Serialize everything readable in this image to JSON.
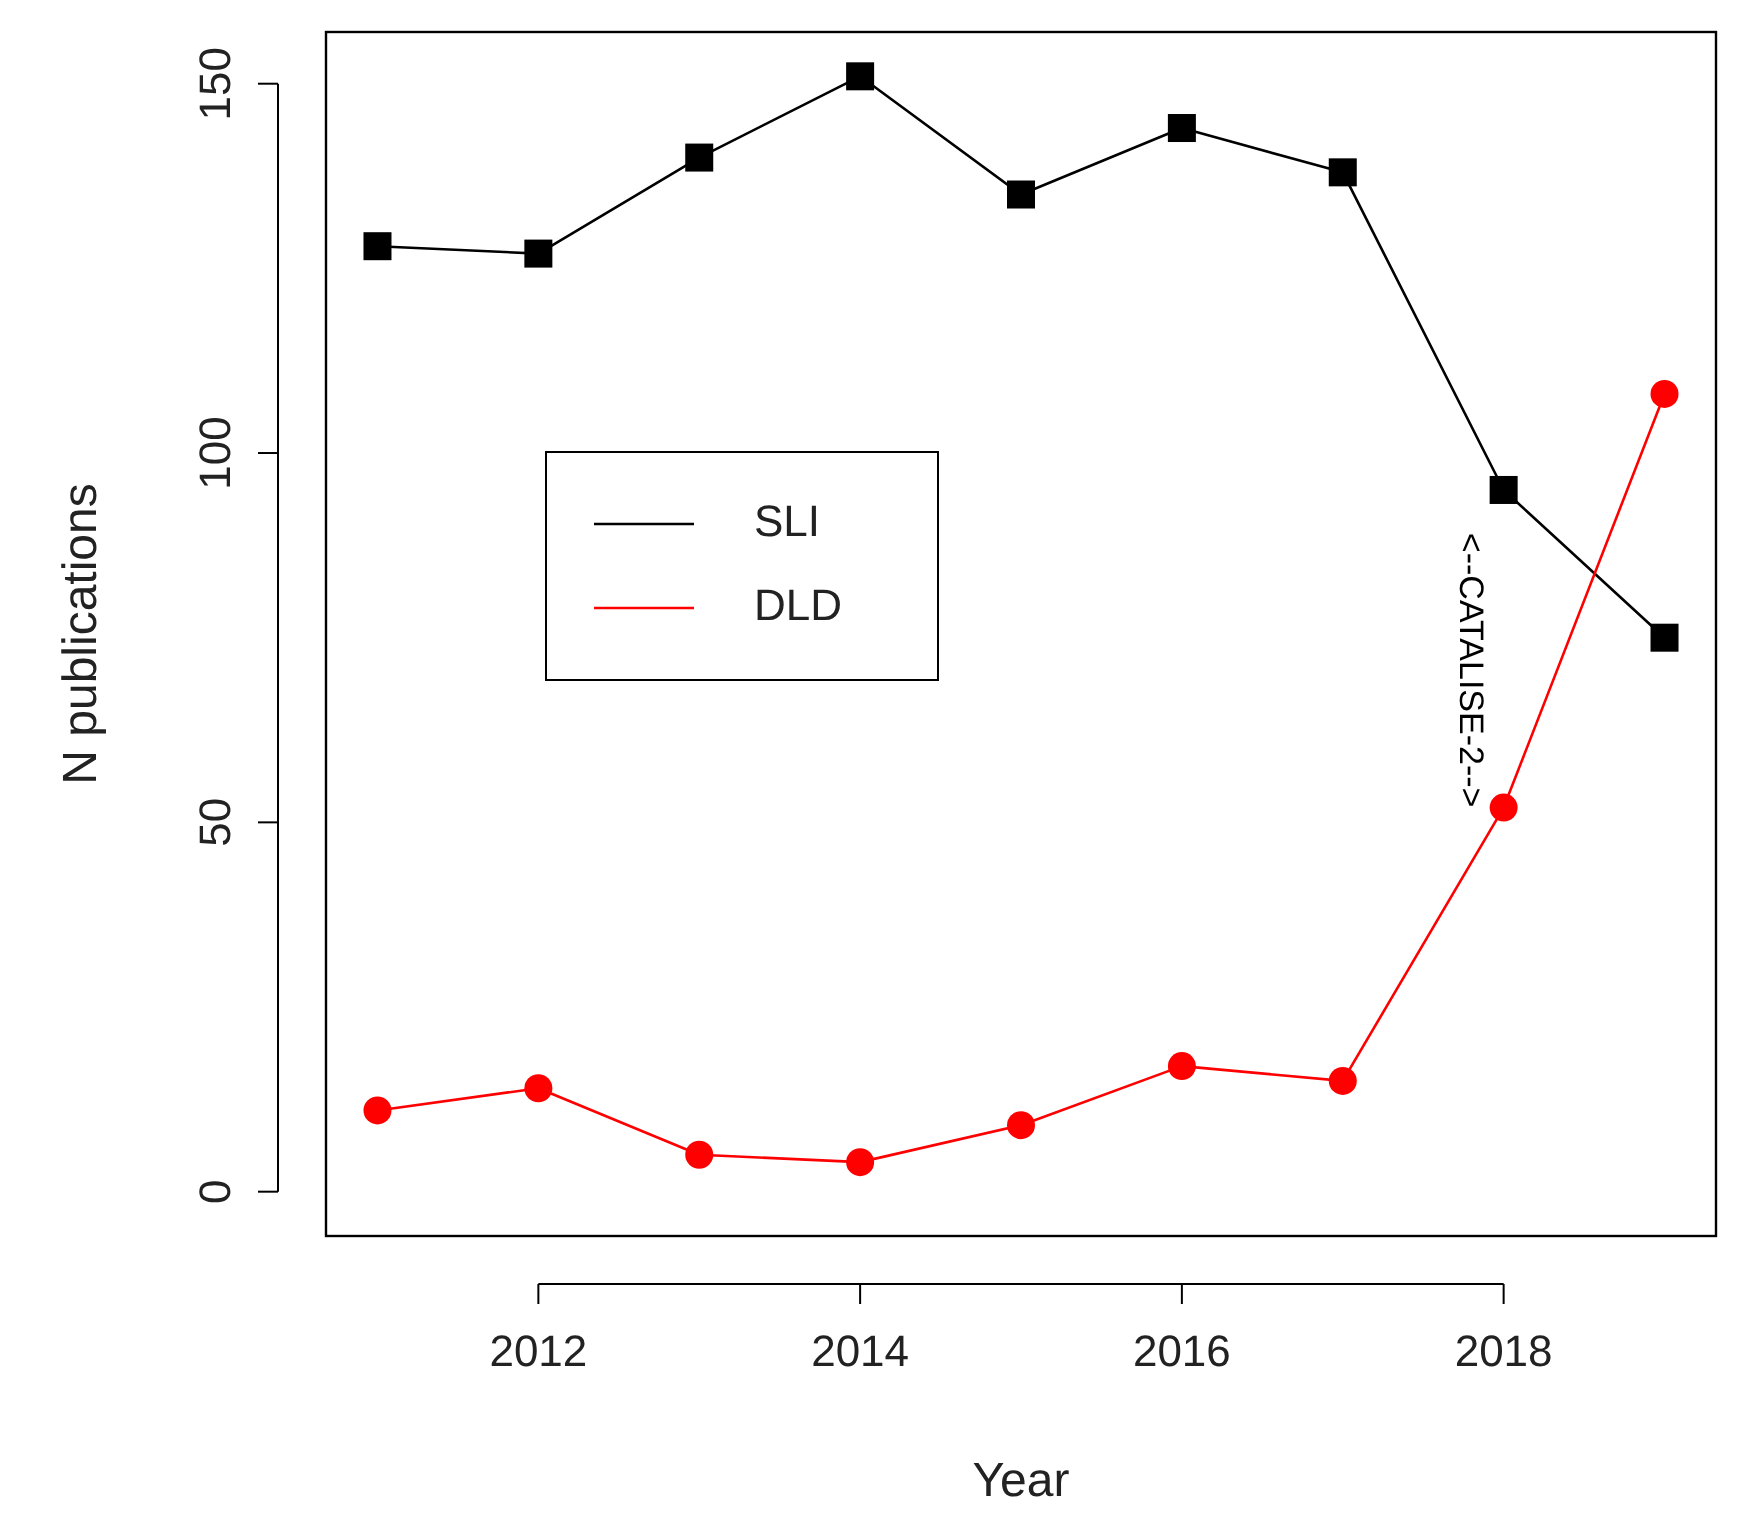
{
  "chart_data": {
    "type": "line",
    "xlabel": "Year",
    "ylabel": "N publications",
    "x": [
      2011,
      2012,
      2013,
      2014,
      2015,
      2016,
      2017,
      2018,
      2019
    ],
    "series": [
      {
        "name": "SLI",
        "color": "#000000",
        "marker": "square",
        "values": [
          128,
          127,
          140,
          151,
          135,
          144,
          138,
          95,
          75
        ]
      },
      {
        "name": "DLD",
        "color": "#ff0000",
        "marker": "circle",
        "values": [
          11,
          14,
          5,
          4,
          9,
          17,
          15,
          52,
          108
        ]
      }
    ],
    "xlim": [
      2010.68,
      2019.32
    ],
    "xticks": [
      2012,
      2014,
      2016,
      2018
    ],
    "ylim": [
      -6,
      157
    ],
    "yticks": [
      0,
      50,
      100,
      150
    ],
    "grid": false,
    "legend": "left",
    "line_style": "solid",
    "annotations": [
      "<--CATALISE-2-->"
    ]
  }
}
